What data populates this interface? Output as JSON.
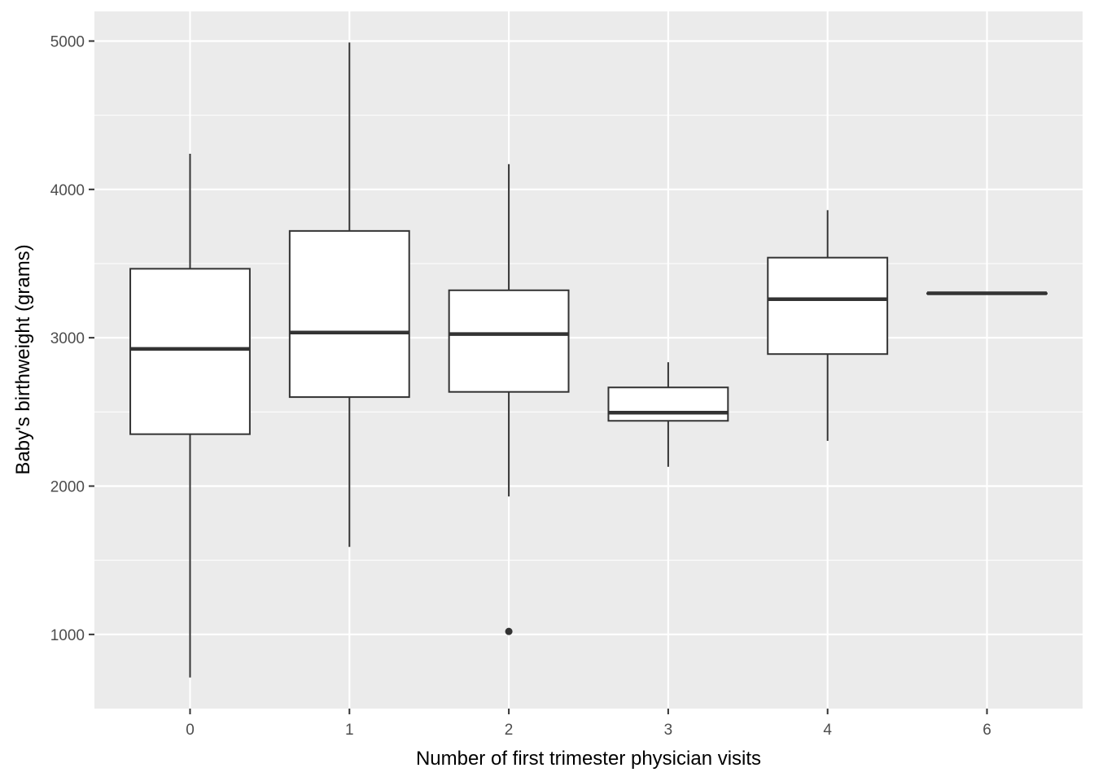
{
  "chart_data": {
    "type": "boxplot",
    "title": "",
    "xlabel": "Number of first trimester physician visits",
    "ylabel": "Baby's birthweight (grams)",
    "categories": [
      "0",
      "1",
      "2",
      "3",
      "4",
      "6"
    ],
    "boxes": [
      {
        "category": "0",
        "whisker_low": 710,
        "q1": 2350,
        "median": 2925,
        "q3": 3465,
        "whisker_high": 4240,
        "outliers": []
      },
      {
        "category": "1",
        "whisker_low": 1590,
        "q1": 2600,
        "median": 3035,
        "q3": 3720,
        "whisker_high": 4990,
        "outliers": []
      },
      {
        "category": "2",
        "whisker_low": 1930,
        "q1": 2635,
        "median": 3025,
        "q3": 3320,
        "whisker_high": 4170,
        "outliers": [
          1020
        ]
      },
      {
        "category": "3",
        "whisker_low": 2130,
        "q1": 2440,
        "median": 2495,
        "q3": 2665,
        "whisker_high": 2835,
        "outliers": []
      },
      {
        "category": "4",
        "whisker_low": 2305,
        "q1": 2890,
        "median": 3260,
        "q3": 3540,
        "whisker_high": 3860,
        "outliers": []
      },
      {
        "category": "6",
        "whisker_low": 3300,
        "q1": 3300,
        "median": 3300,
        "q3": 3300,
        "whisker_high": 3300,
        "outliers": []
      }
    ],
    "ylim": [
      500,
      5200
    ],
    "yticks": [
      1000,
      2000,
      3000,
      4000,
      5000
    ],
    "grid": true,
    "colors": {
      "panel": "#ebebeb",
      "grid": "#ffffff",
      "box_fill": "#ffffff",
      "box_line": "#333333",
      "tick_text": "#4d4d4d"
    }
  }
}
